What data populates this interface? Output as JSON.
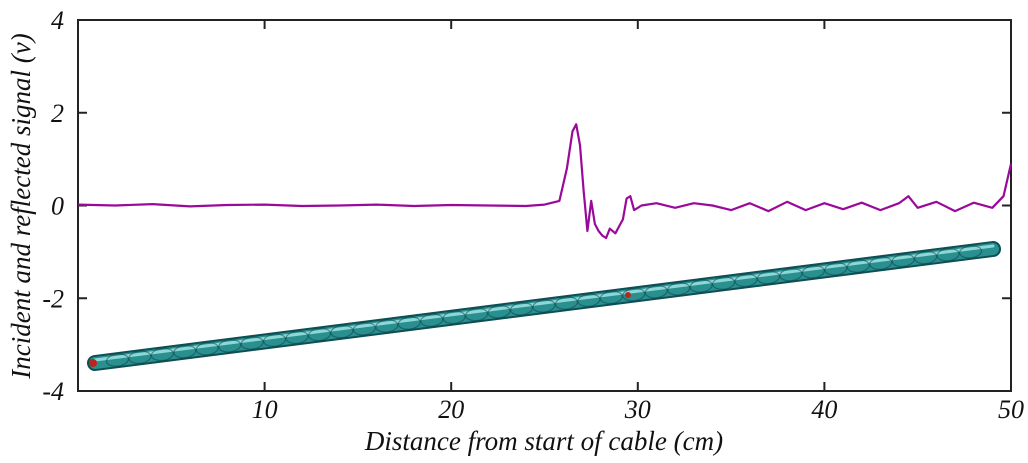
{
  "chart_data": {
    "type": "line",
    "title": "",
    "xlabel": "Distance from start of cable (cm)",
    "ylabel": "Incident and reflected signal (v)",
    "xlim": [
      0,
      50
    ],
    "ylim": [
      -4,
      4
    ],
    "x_ticks": [
      10,
      20,
      30,
      40,
      50
    ],
    "x_tick_labels": [
      "10",
      "20",
      "30",
      "40",
      "50"
    ],
    "y_ticks": [
      4,
      2,
      0,
      -2,
      -4
    ],
    "y_tick_labels": [
      "4",
      "2",
      "0",
      "-2",
      "-4"
    ],
    "grid": false,
    "legend": "none",
    "series_color": "#9a0a9a",
    "cable_color": "#2a8f8f",
    "series": [
      {
        "x": [
          0,
          2,
          4,
          6,
          8,
          10,
          12,
          14,
          16,
          18,
          20,
          22,
          24,
          25,
          25.8,
          26.2,
          26.5,
          26.7,
          26.9,
          27.1,
          27.3,
          27.5,
          27.7,
          27.9,
          28.1,
          28.3,
          28.5,
          28.8,
          29.0,
          29.2,
          29.4,
          29.6,
          29.8,
          30.2,
          31,
          32,
          33,
          34,
          35,
          36,
          37,
          38,
          39,
          40,
          41,
          42,
          43,
          44,
          44.5,
          45,
          46,
          47,
          48,
          49,
          49.6,
          50
        ],
        "y": [
          0.02,
          0.0,
          0.03,
          -0.02,
          0.01,
          0.02,
          -0.01,
          0.0,
          0.02,
          -0.01,
          0.01,
          0.0,
          -0.01,
          0.02,
          0.1,
          0.8,
          1.6,
          1.75,
          1.3,
          0.3,
          -0.55,
          0.1,
          -0.4,
          -0.55,
          -0.65,
          -0.7,
          -0.5,
          -0.6,
          -0.45,
          -0.3,
          0.15,
          0.2,
          -0.1,
          0.0,
          0.05,
          -0.05,
          0.05,
          0.0,
          -0.1,
          0.05,
          -0.12,
          0.08,
          -0.1,
          0.05,
          -0.08,
          0.06,
          -0.1,
          0.05,
          0.2,
          -0.05,
          0.08,
          -0.12,
          0.06,
          -0.05,
          0.2,
          0.9
        ]
      }
    ]
  }
}
